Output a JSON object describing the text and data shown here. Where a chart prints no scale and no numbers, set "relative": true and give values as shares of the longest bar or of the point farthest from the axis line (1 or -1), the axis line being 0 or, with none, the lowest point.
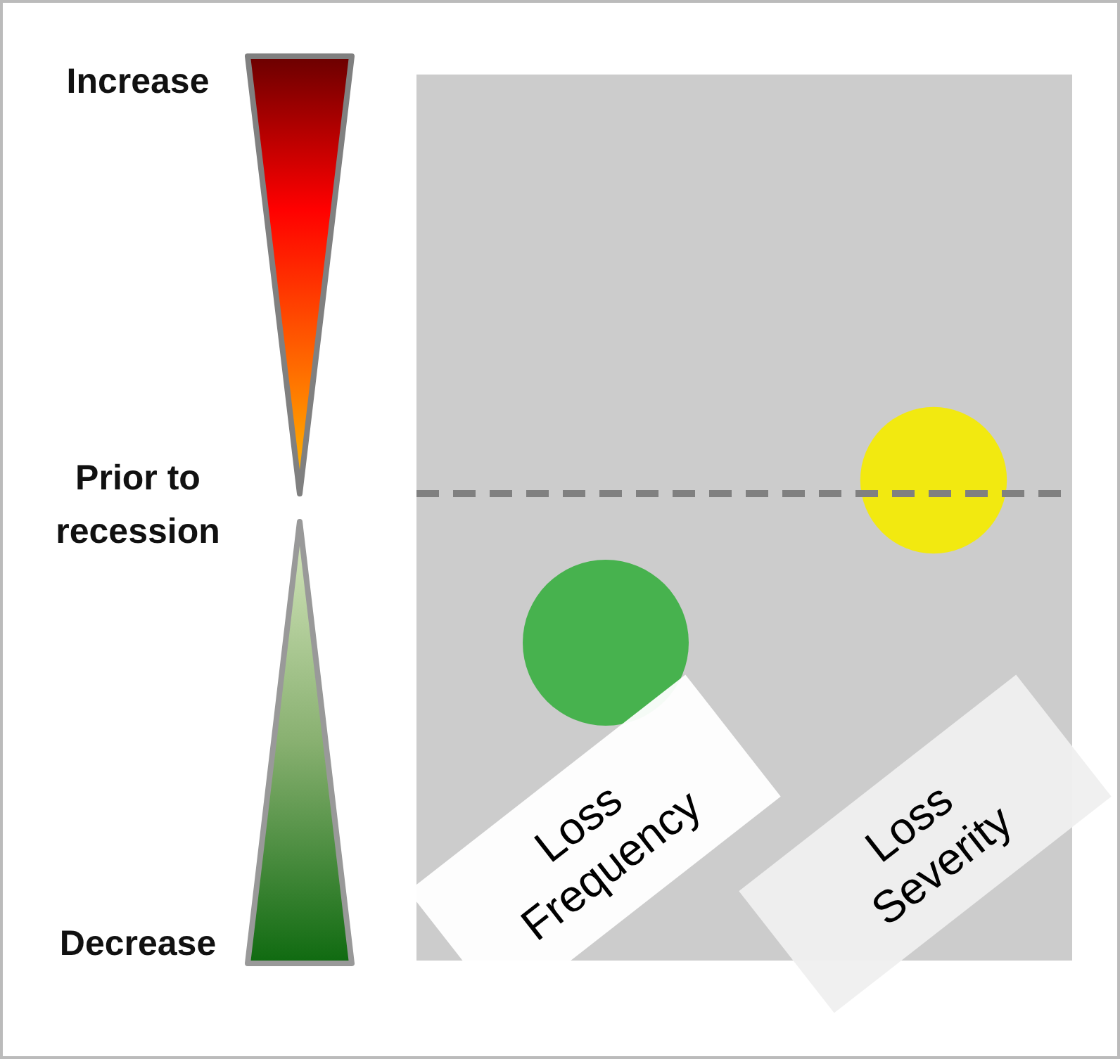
{
  "chart_data": {
    "type": "bubble",
    "relative": true,
    "categories": [
      "Loss Frequency",
      "Loss Severity"
    ],
    "values": [
      -1,
      0.09
    ],
    "sizes": [
      1,
      0.78
    ],
    "colors": [
      "#3cb043",
      "#f5eb00"
    ],
    "ref_lines": [
      {
        "axis": "y",
        "value": 0,
        "color": "#808080",
        "line_style": "dashed"
      }
    ],
    "annotations": [
      "Increase",
      "Prior to recession",
      "Decrease"
    ],
    "grid": false
  }
}
